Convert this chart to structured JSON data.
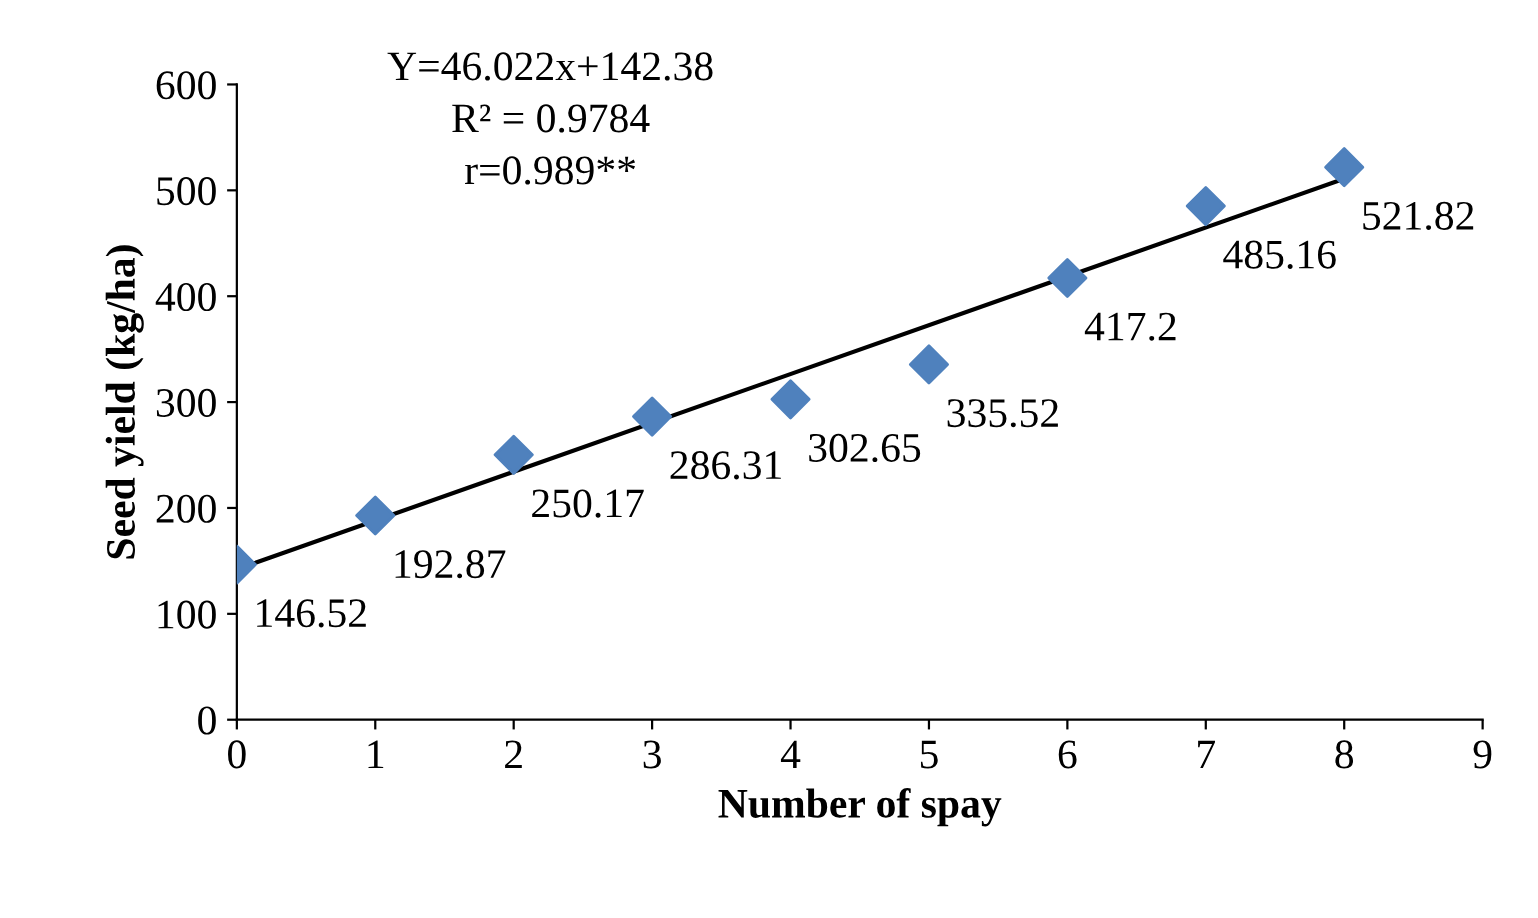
{
  "chart_data": {
    "type": "scatter",
    "xlabel": "Number of spay",
    "ylabel": "Seed yield (kg/ha)",
    "x": [
      0,
      1,
      2,
      3,
      4,
      5,
      6,
      7,
      8
    ],
    "series": [
      {
        "color": "#4f81bd",
        "marker": "diamond",
        "values": [
          146.52,
          192.87,
          250.17,
          286.31,
          302.65,
          335.52,
          417.2,
          485.16,
          521.82
        ],
        "value_labels": [
          "146.52",
          "192.87",
          "250.17",
          "286.31",
          "302.65",
          "335.52",
          "417.2",
          "485.16",
          "521.82"
        ]
      },
      {
        "type": "line",
        "color": "#000000",
        "marker": "none",
        "line_style": "solid",
        "x": [
          0,
          8
        ],
        "values": [
          142,
          511
        ]
      }
    ],
    "annotations": [
      "Y=46.022x+142.38",
      "R² = 0.9784",
      "r=0.989**"
    ],
    "xlim": [
      0,
      9
    ],
    "xticks": [
      0,
      1,
      2,
      3,
      4,
      5,
      6,
      7,
      8,
      9
    ],
    "ylim": [
      0,
      600
    ],
    "yticks": [
      0,
      100,
      200,
      300,
      400,
      500,
      600
    ],
    "grid": false,
    "legend": false
  }
}
